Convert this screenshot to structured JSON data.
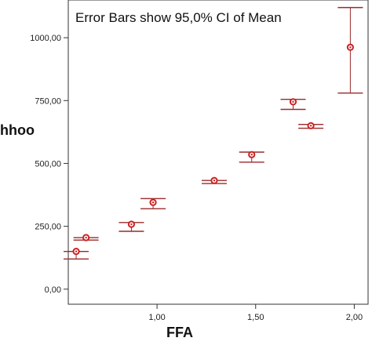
{
  "chart_data": {
    "type": "scatter",
    "annotation": "Error Bars show 95,0% CI of Mean",
    "xlabel": "FFA",
    "ylabel": "hhoo",
    "xlim": [
      0.55,
      2.07
    ],
    "ylim": [
      -60,
      1150
    ],
    "x_ticks": [
      {
        "value": 1.0,
        "label": "1,00"
      },
      {
        "value": 1.5,
        "label": "1,50"
      },
      {
        "value": 2.0,
        "label": "2,00"
      }
    ],
    "y_ticks": [
      {
        "value": 0,
        "label": "0,00"
      },
      {
        "value": 250,
        "label": "250,00"
      },
      {
        "value": 500,
        "label": "500,00"
      },
      {
        "value": 750,
        "label": "750,00"
      },
      {
        "value": 1000,
        "label": "1000,00"
      }
    ],
    "grid": false,
    "colors": {
      "marker": "#cc2222",
      "errorbar": "#9a2a2a",
      "axis": "#333333"
    },
    "points": [
      {
        "x": 0.59,
        "y": 150,
        "ci_low": 120,
        "ci_high": 150
      },
      {
        "x": 0.64,
        "y": 205,
        "ci_low": 195,
        "ci_high": 205
      },
      {
        "x": 0.87,
        "y": 258,
        "ci_low": 230,
        "ci_high": 265
      },
      {
        "x": 0.98,
        "y": 345,
        "ci_low": 320,
        "ci_high": 360
      },
      {
        "x": 1.29,
        "y": 432,
        "ci_low": 420,
        "ci_high": 432
      },
      {
        "x": 1.48,
        "y": 535,
        "ci_low": 505,
        "ci_high": 545
      },
      {
        "x": 1.69,
        "y": 745,
        "ci_low": 715,
        "ci_high": 755
      },
      {
        "x": 1.78,
        "y": 650,
        "ci_low": 640,
        "ci_high": 655
      },
      {
        "x": 1.98,
        "y": 962,
        "ci_low": 780,
        "ci_high": 1120
      }
    ]
  }
}
